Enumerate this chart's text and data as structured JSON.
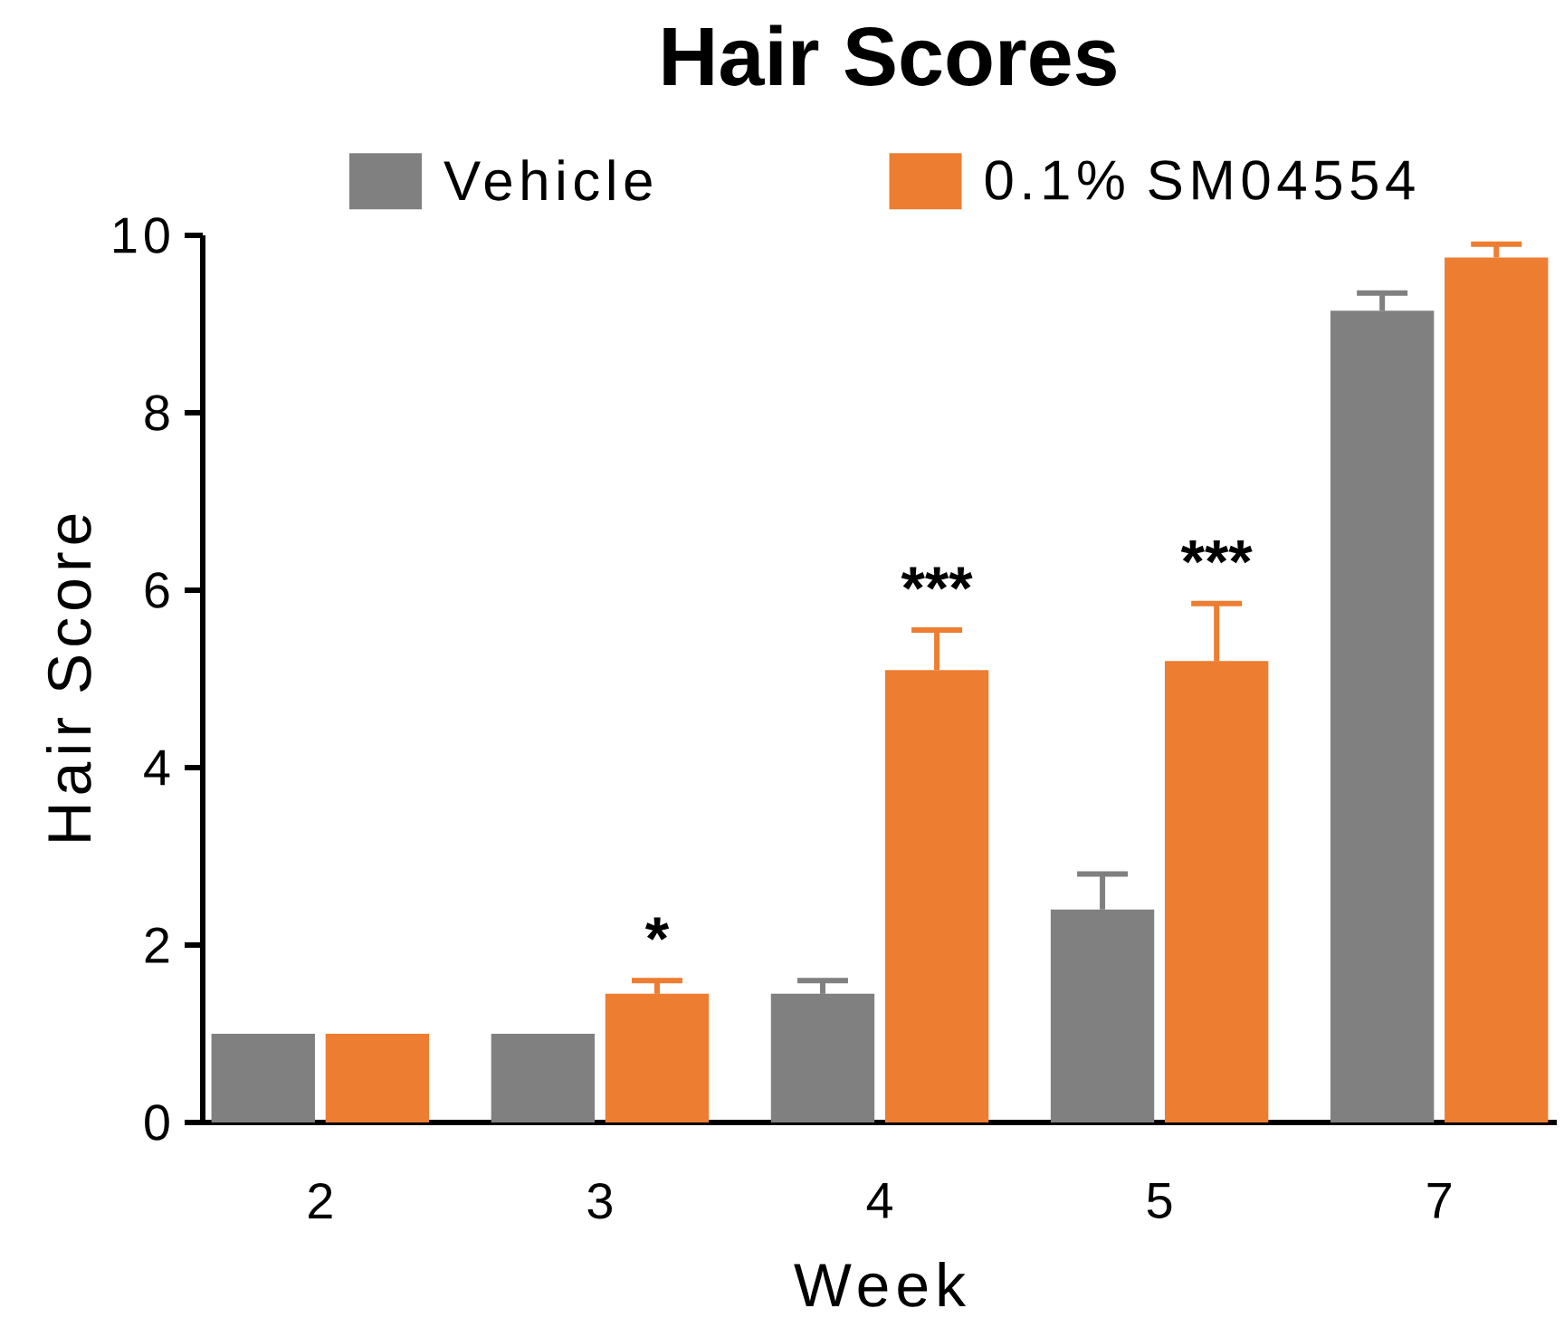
{
  "chart_data": {
    "type": "bar",
    "title": "Hair Scores",
    "xlabel": "Week",
    "ylabel": "Hair Score",
    "categories": [
      "2",
      "3",
      "4",
      "5",
      "7"
    ],
    "series": [
      {
        "name": "Vehicle",
        "color": "#808080",
        "values": [
          1.0,
          1.0,
          1.45,
          2.4,
          9.15
        ],
        "errors": [
          null,
          null,
          [
            1.45,
            1.6
          ],
          [
            2.4,
            2.8
          ],
          [
            9.15,
            9.35
          ]
        ]
      },
      {
        "name": "0.1% SM04554",
        "color": "#ED7D31",
        "values": [
          1.0,
          1.45,
          5.1,
          5.2,
          9.75
        ],
        "errors": [
          null,
          [
            1.45,
            1.6
          ],
          [
            5.1,
            5.55
          ],
          [
            5.2,
            5.85
          ],
          [
            9.75,
            9.9
          ]
        ]
      }
    ],
    "ylim": [
      0,
      10
    ],
    "yticks": [
      0,
      2,
      4,
      6,
      8,
      10
    ],
    "legend": "top",
    "annotations": [
      {
        "text": "*",
        "x": "3",
        "y": 1.45
      },
      {
        "text": "***",
        "x": "4",
        "y": 5.1
      },
      {
        "text": "***",
        "x": "5",
        "y": 5.2
      }
    ]
  }
}
